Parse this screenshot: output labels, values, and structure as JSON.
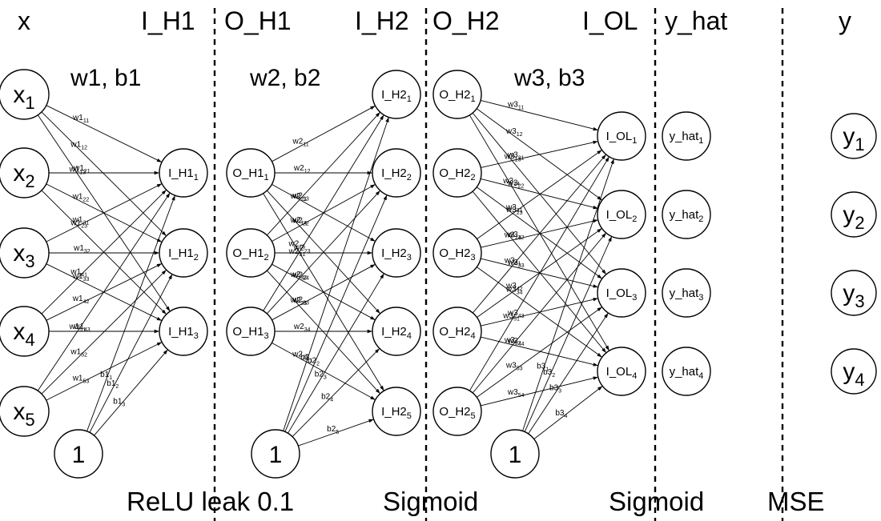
{
  "headers": {
    "x": "x",
    "I_H1": "I_H1",
    "O_H1": "O_H1",
    "I_H2": "I_H2",
    "O_H2": "O_H2",
    "I_OL": "I_OL",
    "y_hat": "y_hat",
    "y": "y"
  },
  "params": {
    "layer1": "w1, b1",
    "layer2": "w2, b2",
    "layer3": "w3, b3"
  },
  "activations": {
    "relu": "ReLU leak 0.1",
    "sigmoid1": "Sigmoid",
    "sigmoid2": "Sigmoid",
    "loss": "MSE"
  },
  "bias_label": "1",
  "layers": {
    "x": {
      "base": "x",
      "subs": [
        "1",
        "2",
        "3",
        "4",
        "5"
      ]
    },
    "I_H1": {
      "base": "I_H1",
      "subs": [
        "1",
        "2",
        "3"
      ]
    },
    "O_H1": {
      "base": "O_H1",
      "subs": [
        "1",
        "2",
        "3"
      ]
    },
    "I_H2": {
      "base": "I_H2",
      "subs": [
        "1",
        "2",
        "3",
        "4",
        "5"
      ]
    },
    "O_H2": {
      "base": "O_H2",
      "subs": [
        "1",
        "2",
        "3",
        "4",
        "5"
      ]
    },
    "I_OL": {
      "base": "I_OL",
      "subs": [
        "1",
        "2",
        "3",
        "4"
      ]
    },
    "y_hat": {
      "base": "y_hat",
      "subs": [
        "1",
        "2",
        "3",
        "4"
      ]
    },
    "y": {
      "base": "y",
      "subs": [
        "1",
        "2",
        "3",
        "4"
      ]
    }
  },
  "edge_labels": {
    "w1": [
      "11",
      "12",
      "13",
      "21",
      "22",
      "23",
      "31",
      "32",
      "33",
      "41",
      "42",
      "43",
      "51",
      "52",
      "53"
    ],
    "b1": [
      "1",
      "2",
      "3"
    ],
    "w2": [
      "11",
      "12",
      "13",
      "14",
      "15",
      "21",
      "22",
      "23",
      "24",
      "25",
      "31",
      "32",
      "33",
      "34",
      "35"
    ],
    "b2": [
      "1",
      "2",
      "3",
      "4",
      "5"
    ],
    "w3": [
      "11",
      "12",
      "13",
      "14",
      "21",
      "22",
      "23",
      "24",
      "31",
      "32",
      "33",
      "34",
      "41",
      "42",
      "43",
      "44",
      "51",
      "52",
      "53",
      "54"
    ],
    "b3": [
      "1",
      "2",
      "3",
      "4"
    ]
  }
}
